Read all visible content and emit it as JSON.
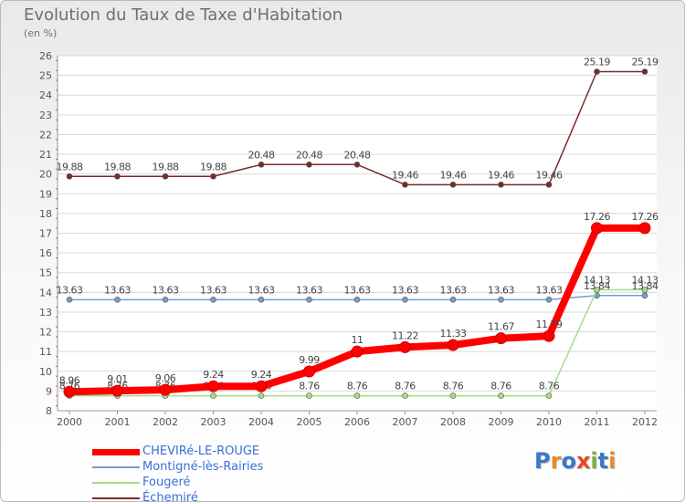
{
  "title": "Evolution du Taux de Taxe d'Habitation",
  "subtitle": "(en %)",
  "logo": {
    "text": "Proxiti",
    "colors": [
      "#3a78c8",
      "#e8892a",
      "#3a78c8",
      "#e8482a",
      "#7cb342",
      "#3a78c8",
      "#e8892a"
    ]
  },
  "chart_data": {
    "type": "line",
    "x": [
      "2000",
      "2001",
      "2002",
      "2003",
      "2004",
      "2005",
      "2006",
      "2007",
      "2008",
      "2009",
      "2010",
      "2011",
      "2012"
    ],
    "ylim": [
      8,
      26
    ],
    "yticks": [
      "8",
      "9",
      "10",
      "11",
      "12",
      "13",
      "14",
      "15",
      "16",
      "17",
      "18",
      "19",
      "20",
      "21",
      "22",
      "23",
      "24",
      "25",
      "26"
    ],
    "grid": true,
    "legend_position": "bottom-left",
    "series": [
      {
        "name": "Échemiré",
        "color": "#7b2a2a",
        "width": 1.5,
        "values": [
          19.88,
          19.88,
          19.88,
          19.88,
          20.48,
          20.48,
          20.48,
          19.46,
          19.46,
          19.46,
          19.46,
          25.19,
          25.19
        ],
        "labels": [
          "19.88",
          "19.88",
          "19.88",
          "19.88",
          "20.48",
          "20.48",
          "20.48",
          "19.46",
          "19.46",
          "19.46",
          "19.46",
          "25.19",
          "25.19"
        ]
      },
      {
        "name": "Montigné-lès-Rairies",
        "color": "#6fa0cf",
        "width": 1.5,
        "values": [
          13.63,
          13.63,
          13.63,
          13.63,
          13.63,
          13.63,
          13.63,
          13.63,
          13.63,
          13.63,
          13.63,
          13.84,
          13.84
        ],
        "labels": [
          "13.63",
          "13.63",
          "13.63",
          "13.63",
          "13.63",
          "13.63",
          "13.63",
          "13.63",
          "13.63",
          "13.63",
          "13.63",
          "13.84",
          "13.84"
        ]
      },
      {
        "name": "Fougeré",
        "color": "#a9dc86",
        "width": 1.5,
        "values": [
          8.76,
          8.76,
          8.76,
          8.76,
          8.76,
          8.76,
          8.76,
          8.76,
          8.76,
          8.76,
          8.76,
          14.13,
          14.13
        ],
        "labels": [
          "8.76",
          "8.76",
          "8.76",
          "8.76",
          "8.76",
          "8.76",
          "8.76",
          "8.76",
          "8.76",
          "8.76",
          "8.76",
          "14.13",
          "14.13"
        ]
      },
      {
        "name": "CHEVIRé-LE-ROUGE",
        "color": "#ff0000",
        "width": 8,
        "values": [
          8.96,
          9.01,
          9.06,
          9.24,
          9.24,
          9.99,
          11,
          11.22,
          11.33,
          11.67,
          11.79,
          17.26,
          17.26
        ],
        "labels": [
          "8.96",
          "9.01",
          "9.06",
          "9.24",
          "9.24",
          "9.99",
          "11",
          "11.22",
          "11.33",
          "11.67",
          "11.79",
          "17.26",
          "17.26"
        ]
      }
    ],
    "legend": [
      {
        "name": "CHEVIRé-LE-ROUGE",
        "color": "#ff0000",
        "text_color": "#3a6fd8",
        "thick": true
      },
      {
        "name": "Montigné-lès-Rairies",
        "color": "#6fa0cf",
        "text_color": "#3a6fd8",
        "thick": false
      },
      {
        "name": "Fougeré",
        "color": "#a9dc86",
        "text_color": "#3a6fd8",
        "thick": false
      },
      {
        "name": "Échemiré",
        "color": "#7b2a2a",
        "text_color": "#3a6fd8",
        "thick": false
      }
    ]
  }
}
